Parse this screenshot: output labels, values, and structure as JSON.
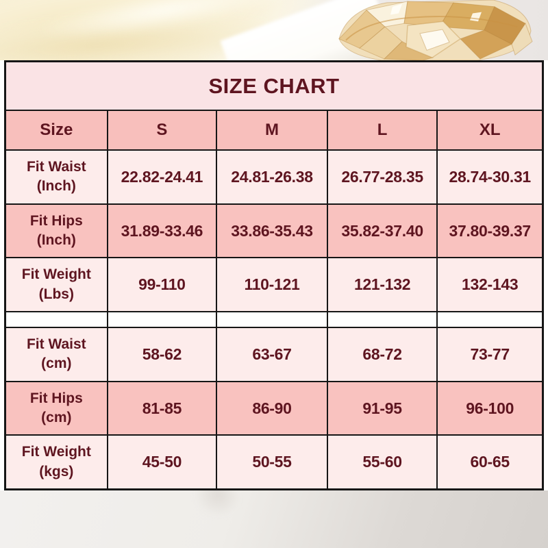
{
  "title": "SIZE CHART",
  "chart_data": {
    "type": "table",
    "title": "SIZE CHART",
    "columns": [
      "Size",
      "S",
      "M",
      "L",
      "XL"
    ],
    "rows": [
      {
        "label": "Fit Waist",
        "unit": "(Inch)",
        "shade": "light",
        "values": [
          "22.82-24.41",
          "24.81-26.38",
          "26.77-28.35",
          "28.74-30.31"
        ]
      },
      {
        "label": "Fit Hips",
        "unit": "(Inch)",
        "shade": "dark",
        "values": [
          "31.89-33.46",
          "33.86-35.43",
          "35.82-37.40",
          "37.80-39.37"
        ]
      },
      {
        "label": "Fit Weight",
        "unit": "(Lbs)",
        "shade": "light",
        "values": [
          "99-110",
          "110-121",
          "121-132",
          "132-143"
        ]
      },
      {
        "label": "Fit Waist",
        "unit": "(cm)",
        "shade": "light",
        "separator_before": true,
        "values": [
          "58-62",
          "63-67",
          "68-72",
          "73-77"
        ]
      },
      {
        "label": "Fit Hips",
        "unit": "(cm)",
        "shade": "dark",
        "values": [
          "81-85",
          "86-90",
          "91-95",
          "96-100"
        ]
      },
      {
        "label": "Fit Weight",
        "unit": "(kgs)",
        "shade": "light",
        "values": [
          "45-50",
          "50-55",
          "55-60",
          "60-65"
        ]
      }
    ]
  },
  "colors": {
    "title_bg": "#fae3e5",
    "header_bg": "#f8bfbc",
    "row_light_bg": "#fdeceb",
    "row_dark_bg": "#f9c2bf",
    "separator_bg": "#ffffff",
    "text": "#5e1520",
    "border": "#161616"
  },
  "decor": {
    "top_left": "cream-fabric",
    "top_right": "amber-crystal-glass",
    "bottom": "grey-studio-surface"
  }
}
